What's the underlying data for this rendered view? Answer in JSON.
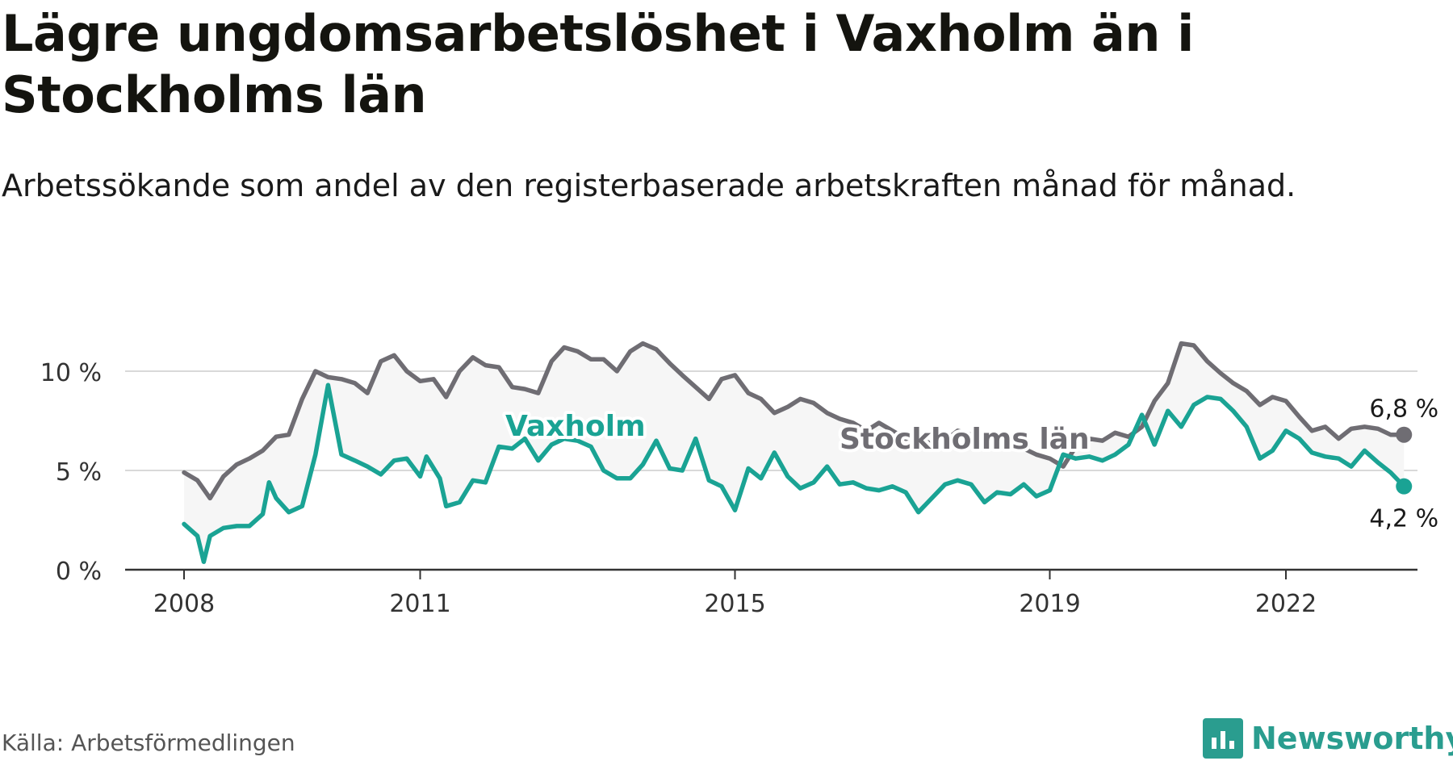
{
  "title": "Lägre ungdomsarbetslöshet i Vaxholm än i Stockholms län",
  "subtitle": "Arbetssökande som andel av den registerbaserade arbetskraften månad för månad.",
  "source": "Källa: Arbetsförmedlingen",
  "brand": "Newsworthy",
  "colors": {
    "vaxholm": "#1aa394",
    "stockholm": "#6f6d73",
    "band": "#f6f6f6",
    "grid": "#d9d9d9",
    "brand": "#2a9d8f"
  },
  "chart_data": {
    "type": "line",
    "title": "Lägre ungdomsarbetslöshet i Vaxholm än i Stockholms län",
    "xlabel": "",
    "ylabel": "",
    "ylim": [
      0,
      12
    ],
    "xlim": [
      2007.5,
      2023.7
    ],
    "yticks": [
      0,
      5,
      10
    ],
    "ytick_labels": [
      "0 %",
      "5 %",
      "10 %"
    ],
    "xticks": [
      2008,
      2011,
      2015,
      2019,
      2022
    ],
    "xtick_labels": [
      "2008",
      "2011",
      "2015",
      "2019",
      "2022"
    ],
    "series": [
      {
        "name": "Stockholms län",
        "label": "Stockholms län",
        "end_label": "6,8 %",
        "points": [
          [
            2008.0,
            4.9
          ],
          [
            2008.17,
            4.5
          ],
          [
            2008.33,
            3.6
          ],
          [
            2008.5,
            4.7
          ],
          [
            2008.67,
            5.3
          ],
          [
            2008.83,
            5.6
          ],
          [
            2009.0,
            6.0
          ],
          [
            2009.17,
            6.7
          ],
          [
            2009.33,
            6.8
          ],
          [
            2009.5,
            8.6
          ],
          [
            2009.67,
            10.0
          ],
          [
            2009.83,
            9.7
          ],
          [
            2010.0,
            9.6
          ],
          [
            2010.17,
            9.4
          ],
          [
            2010.33,
            8.9
          ],
          [
            2010.5,
            10.5
          ],
          [
            2010.67,
            10.8
          ],
          [
            2010.83,
            10.0
          ],
          [
            2011.0,
            9.5
          ],
          [
            2011.17,
            9.6
          ],
          [
            2011.33,
            8.7
          ],
          [
            2011.5,
            10.0
          ],
          [
            2011.67,
            10.7
          ],
          [
            2011.83,
            10.3
          ],
          [
            2012.0,
            10.2
          ],
          [
            2012.17,
            9.2
          ],
          [
            2012.33,
            9.1
          ],
          [
            2012.5,
            8.9
          ],
          [
            2012.67,
            10.5
          ],
          [
            2012.83,
            11.2
          ],
          [
            2013.0,
            11.0
          ],
          [
            2013.17,
            10.6
          ],
          [
            2013.33,
            10.6
          ],
          [
            2013.5,
            10.0
          ],
          [
            2013.67,
            11.0
          ],
          [
            2013.83,
            11.4
          ],
          [
            2014.0,
            11.1
          ],
          [
            2014.17,
            10.4
          ],
          [
            2014.33,
            9.8
          ],
          [
            2014.5,
            9.2
          ],
          [
            2014.67,
            8.6
          ],
          [
            2014.83,
            9.6
          ],
          [
            2015.0,
            9.8
          ],
          [
            2015.17,
            8.9
          ],
          [
            2015.33,
            8.6
          ],
          [
            2015.5,
            7.9
          ],
          [
            2015.67,
            8.2
          ],
          [
            2015.83,
            8.6
          ],
          [
            2016.0,
            8.4
          ],
          [
            2016.17,
            7.9
          ],
          [
            2016.33,
            7.6
          ],
          [
            2016.5,
            7.4
          ],
          [
            2016.67,
            7.0
          ],
          [
            2016.83,
            7.4
          ],
          [
            2017.0,
            7.0
          ],
          [
            2017.17,
            6.6
          ],
          [
            2017.33,
            6.7
          ],
          [
            2017.5,
            6.3
          ],
          [
            2017.67,
            6.5
          ],
          [
            2017.83,
            7.0
          ],
          [
            2018.0,
            6.8
          ],
          [
            2018.17,
            6.5
          ],
          [
            2018.33,
            6.4
          ],
          [
            2018.5,
            6.3
          ],
          [
            2018.67,
            6.1
          ],
          [
            2018.83,
            5.8
          ],
          [
            2019.0,
            5.6
          ],
          [
            2019.17,
            5.2
          ],
          [
            2019.33,
            6.2
          ],
          [
            2019.5,
            6.6
          ],
          [
            2019.67,
            6.5
          ],
          [
            2019.83,
            6.9
          ],
          [
            2020.0,
            6.7
          ],
          [
            2020.17,
            7.2
          ],
          [
            2020.33,
            8.5
          ],
          [
            2020.5,
            9.4
          ],
          [
            2020.67,
            11.4
          ],
          [
            2020.83,
            11.3
          ],
          [
            2021.0,
            10.5
          ],
          [
            2021.17,
            9.9
          ],
          [
            2021.33,
            9.4
          ],
          [
            2021.5,
            9.0
          ],
          [
            2021.67,
            8.3
          ],
          [
            2021.83,
            8.7
          ],
          [
            2022.0,
            8.5
          ],
          [
            2022.17,
            7.7
          ],
          [
            2022.33,
            7.0
          ],
          [
            2022.5,
            7.2
          ],
          [
            2022.67,
            6.6
          ],
          [
            2022.83,
            7.1
          ],
          [
            2023.0,
            7.2
          ],
          [
            2023.17,
            7.1
          ],
          [
            2023.33,
            6.8
          ],
          [
            2023.5,
            6.8
          ]
        ]
      },
      {
        "name": "Vaxholm",
        "label": "Vaxholm",
        "end_label": "4,2 %",
        "points": [
          [
            2008.0,
            2.3
          ],
          [
            2008.17,
            1.7
          ],
          [
            2008.25,
            0.4
          ],
          [
            2008.33,
            1.7
          ],
          [
            2008.5,
            2.1
          ],
          [
            2008.67,
            2.2
          ],
          [
            2008.83,
            2.2
          ],
          [
            2009.0,
            2.8
          ],
          [
            2009.08,
            4.4
          ],
          [
            2009.17,
            3.6
          ],
          [
            2009.33,
            2.9
          ],
          [
            2009.5,
            3.2
          ],
          [
            2009.67,
            5.8
          ],
          [
            2009.83,
            9.3
          ],
          [
            2010.0,
            5.8
          ],
          [
            2010.17,
            5.5
          ],
          [
            2010.33,
            5.2
          ],
          [
            2010.5,
            4.8
          ],
          [
            2010.67,
            5.5
          ],
          [
            2010.83,
            5.6
          ],
          [
            2011.0,
            4.7
          ],
          [
            2011.08,
            5.7
          ],
          [
            2011.25,
            4.6
          ],
          [
            2011.33,
            3.2
          ],
          [
            2011.5,
            3.4
          ],
          [
            2011.67,
            4.5
          ],
          [
            2011.83,
            4.4
          ],
          [
            2012.0,
            6.2
          ],
          [
            2012.17,
            6.1
          ],
          [
            2012.33,
            6.6
          ],
          [
            2012.5,
            5.5
          ],
          [
            2012.67,
            6.3
          ],
          [
            2012.83,
            6.6
          ],
          [
            2013.0,
            6.5
          ],
          [
            2013.17,
            6.2
          ],
          [
            2013.33,
            5.0
          ],
          [
            2013.5,
            4.6
          ],
          [
            2013.67,
            4.6
          ],
          [
            2013.83,
            5.3
          ],
          [
            2014.0,
            6.5
          ],
          [
            2014.17,
            5.1
          ],
          [
            2014.33,
            5.0
          ],
          [
            2014.5,
            6.6
          ],
          [
            2014.67,
            4.5
          ],
          [
            2014.83,
            4.2
          ],
          [
            2015.0,
            3.0
          ],
          [
            2015.17,
            5.1
          ],
          [
            2015.33,
            4.6
          ],
          [
            2015.5,
            5.9
          ],
          [
            2015.67,
            4.7
          ],
          [
            2015.83,
            4.1
          ],
          [
            2016.0,
            4.4
          ],
          [
            2016.17,
            5.2
          ],
          [
            2016.33,
            4.3
          ],
          [
            2016.5,
            4.4
          ],
          [
            2016.67,
            4.1
          ],
          [
            2016.83,
            4.0
          ],
          [
            2017.0,
            4.2
          ],
          [
            2017.17,
            3.9
          ],
          [
            2017.33,
            2.9
          ],
          [
            2017.5,
            3.6
          ],
          [
            2017.67,
            4.3
          ],
          [
            2017.83,
            4.5
          ],
          [
            2018.0,
            4.3
          ],
          [
            2018.17,
            3.4
          ],
          [
            2018.33,
            3.9
          ],
          [
            2018.5,
            3.8
          ],
          [
            2018.67,
            4.3
          ],
          [
            2018.83,
            3.7
          ],
          [
            2019.0,
            4.0
          ],
          [
            2019.17,
            5.8
          ],
          [
            2019.33,
            5.6
          ],
          [
            2019.5,
            5.7
          ],
          [
            2019.67,
            5.5
          ],
          [
            2019.83,
            5.8
          ],
          [
            2020.0,
            6.3
          ],
          [
            2020.17,
            7.8
          ],
          [
            2020.33,
            6.3
          ],
          [
            2020.5,
            8.0
          ],
          [
            2020.67,
            7.2
          ],
          [
            2020.83,
            8.3
          ],
          [
            2021.0,
            8.7
          ],
          [
            2021.17,
            8.6
          ],
          [
            2021.33,
            8.0
          ],
          [
            2021.5,
            7.2
          ],
          [
            2021.67,
            5.6
          ],
          [
            2021.83,
            6.0
          ],
          [
            2022.0,
            7.0
          ],
          [
            2022.17,
            6.6
          ],
          [
            2022.33,
            5.9
          ],
          [
            2022.5,
            5.7
          ],
          [
            2022.67,
            5.6
          ],
          [
            2022.83,
            5.2
          ],
          [
            2023.0,
            6.0
          ],
          [
            2023.17,
            5.4
          ],
          [
            2023.33,
            4.9
          ],
          [
            2023.5,
            4.2
          ]
        ]
      }
    ]
  }
}
